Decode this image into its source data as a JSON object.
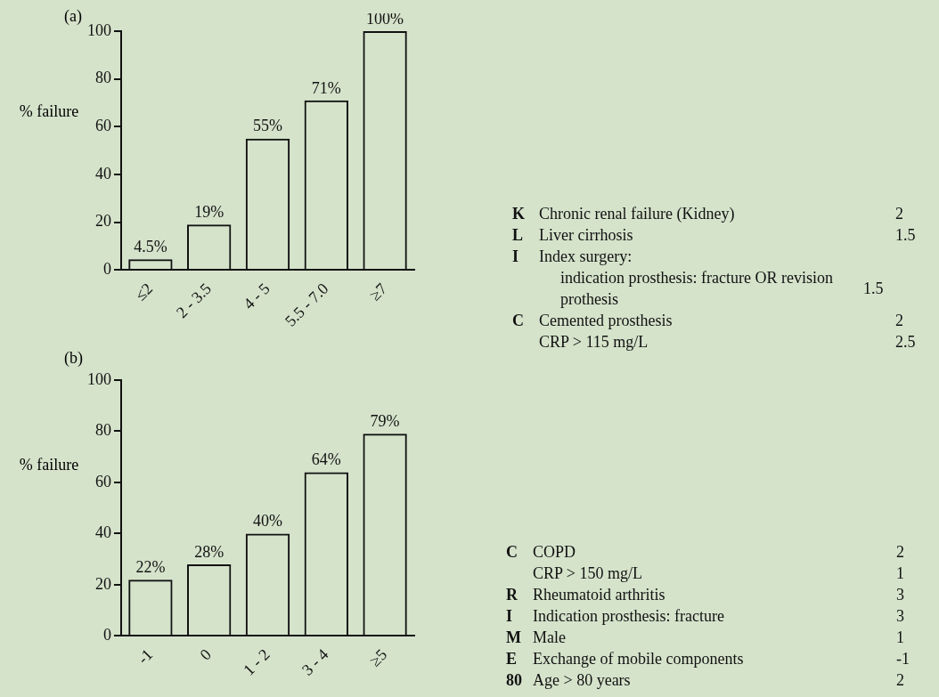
{
  "chart_data": [
    {
      "type": "bar",
      "title": "(a)",
      "ylabel": "% failure",
      "categories": [
        "≤2",
        "2 - 3.5",
        "4 - 5",
        "5.5 - 7.0",
        "≥7"
      ],
      "values": [
        4.5,
        19,
        55,
        71,
        100
      ],
      "value_labels": [
        "4.5%",
        "19%",
        "55%",
        "71%",
        "100%"
      ],
      "color": "#111111",
      "ylim": [
        0,
        100
      ],
      "yticks": [
        0,
        20,
        40,
        60,
        80,
        100
      ],
      "grid": false
    },
    {
      "type": "other",
      "annotations": [
        "K",
        "Chronic renal failure (Kidney)",
        "2",
        "L",
        "Liver cirrhosis",
        "1.5",
        "I",
        "Index surgery:",
        null,
        null,
        "indication prosthesis: fracture OR revision prothesis",
        "1.5",
        "C",
        "Cemented prosthesis",
        "2",
        null,
        "CRP > 115 mg/L",
        "2.5"
      ]
    },
    {
      "type": "bar",
      "title": "(b)",
      "ylabel": "% failure",
      "categories": [
        "-1",
        "0",
        "1 - 2",
        "3 - 4",
        "≥5"
      ],
      "values": [
        22,
        28,
        40,
        64,
        79
      ],
      "value_labels": [
        "22%",
        "28%",
        "40%",
        "64%",
        "79%"
      ],
      "color": "#111111",
      "ylim": [
        0,
        100
      ],
      "yticks": [
        0,
        20,
        40,
        60,
        80,
        100
      ],
      "grid": false
    },
    {
      "type": "other",
      "annotations": [
        "C",
        "COPD",
        "2",
        null,
        "CRP > 150 mg/L",
        "1",
        "R",
        "Rheumatoid arthritis",
        "3",
        "I",
        "Indication prosthesis: fracture",
        "3",
        "M",
        "Male",
        "1",
        "E",
        "Exchange of mobile components",
        "-1",
        "80",
        "Age > 80 years",
        "2"
      ]
    }
  ]
}
